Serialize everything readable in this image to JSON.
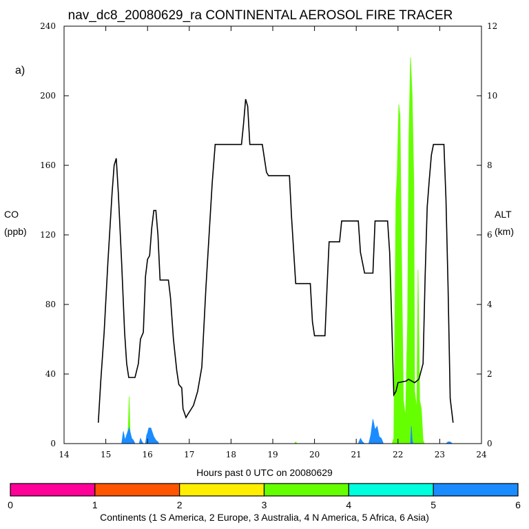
{
  "chart_data": {
    "type": "area",
    "title": "nav_dc8_20080629_ra CONTINENTAL AEROSOL FIRE TRACER",
    "panel_label": "a)",
    "xlabel": "Hours past 0 UTC on 20080629",
    "ylabel_left": [
      "CO",
      "(ppb)"
    ],
    "ylabel_right": [
      "ALT",
      "(km)"
    ],
    "xlim": [
      14,
      24
    ],
    "ylim": [
      0,
      240
    ],
    "y2lim": [
      0,
      12
    ],
    "xticks": [
      "14",
      "15",
      "16",
      "17",
      "18",
      "19",
      "20",
      "21",
      "22",
      "23",
      "24"
    ],
    "yticks": [
      "0",
      "40",
      "80",
      "120",
      "160",
      "200",
      "240"
    ],
    "y2ticks": [
      "0",
      "2",
      "4",
      "6",
      "8",
      "10",
      "12"
    ],
    "series": [
      {
        "name": "Altitude (km)",
        "axis": "right",
        "color": "#000000",
        "points": [
          [
            14.82,
            0.6
          ],
          [
            14.88,
            1.8
          ],
          [
            14.96,
            3.2
          ],
          [
            15.05,
            5.2
          ],
          [
            15.15,
            7.2
          ],
          [
            15.2,
            8.0
          ],
          [
            15.25,
            8.2
          ],
          [
            15.3,
            7.2
          ],
          [
            15.38,
            5.2
          ],
          [
            15.45,
            3.2
          ],
          [
            15.5,
            2.3
          ],
          [
            15.55,
            1.9
          ],
          [
            15.7,
            1.9
          ],
          [
            15.78,
            2.3
          ],
          [
            15.83,
            3.0
          ],
          [
            15.9,
            3.2
          ],
          [
            15.95,
            4.8
          ],
          [
            16.0,
            5.3
          ],
          [
            16.05,
            5.4
          ],
          [
            16.1,
            6.2
          ],
          [
            16.15,
            6.7
          ],
          [
            16.2,
            6.7
          ],
          [
            16.25,
            6.0
          ],
          [
            16.3,
            4.7
          ],
          [
            16.5,
            4.7
          ],
          [
            16.55,
            4.2
          ],
          [
            16.62,
            3.0
          ],
          [
            16.7,
            2.1
          ],
          [
            16.75,
            1.7
          ],
          [
            16.82,
            1.6
          ],
          [
            16.85,
            1.0
          ],
          [
            16.92,
            0.75
          ],
          [
            16.97,
            0.85
          ],
          [
            17.05,
            1.0
          ],
          [
            17.1,
            1.1
          ],
          [
            17.2,
            1.5
          ],
          [
            17.3,
            2.2
          ],
          [
            17.4,
            4.5
          ],
          [
            17.55,
            7.5
          ],
          [
            17.62,
            8.6
          ],
          [
            17.75,
            8.6
          ],
          [
            18.0,
            8.6
          ],
          [
            18.25,
            8.6
          ],
          [
            18.3,
            9.2
          ],
          [
            18.35,
            9.9
          ],
          [
            18.4,
            9.7
          ],
          [
            18.45,
            8.6
          ],
          [
            18.7,
            8.6
          ],
          [
            18.75,
            8.6
          ],
          [
            18.85,
            7.8
          ],
          [
            18.9,
            7.7
          ],
          [
            19.0,
            7.7
          ],
          [
            19.4,
            7.7
          ],
          [
            19.45,
            6.5
          ],
          [
            19.55,
            4.6
          ],
          [
            19.9,
            4.6
          ],
          [
            19.95,
            3.5
          ],
          [
            20.0,
            3.1
          ],
          [
            20.25,
            3.1
          ],
          [
            20.3,
            4.5
          ],
          [
            20.35,
            5.8
          ],
          [
            20.6,
            5.8
          ],
          [
            20.65,
            6.4
          ],
          [
            21.05,
            6.4
          ],
          [
            21.1,
            5.5
          ],
          [
            21.2,
            4.9
          ],
          [
            21.4,
            4.9
          ],
          [
            21.45,
            6.4
          ],
          [
            21.75,
            6.4
          ],
          [
            21.8,
            5.5
          ],
          [
            21.85,
            3.5
          ],
          [
            21.9,
            1.4
          ],
          [
            21.95,
            1.5
          ],
          [
            22.0,
            1.75
          ],
          [
            22.2,
            1.8
          ],
          [
            22.25,
            1.85
          ],
          [
            22.4,
            1.75
          ],
          [
            22.5,
            1.85
          ],
          [
            22.6,
            2.3
          ],
          [
            22.65,
            4.8
          ],
          [
            22.7,
            6.8
          ],
          [
            22.75,
            7.6
          ],
          [
            22.8,
            8.3
          ],
          [
            22.85,
            8.6
          ],
          [
            23.1,
            8.6
          ],
          [
            23.15,
            7.0
          ],
          [
            23.2,
            4.5
          ],
          [
            23.25,
            1.3
          ],
          [
            23.32,
            0.6
          ]
        ]
      },
      {
        "name": "N America (4)",
        "axis": "left",
        "color": "#66ff00",
        "points": [
          [
            15.5,
            0
          ],
          [
            15.54,
            10
          ],
          [
            15.56,
            27
          ],
          [
            15.58,
            8
          ],
          [
            15.6,
            0
          ],
          [
            19.52,
            0
          ],
          [
            19.55,
            1
          ],
          [
            19.58,
            0
          ],
          [
            21.86,
            0
          ],
          [
            21.9,
            3
          ],
          [
            21.95,
            140
          ],
          [
            21.98,
            155
          ],
          [
            22.02,
            195
          ],
          [
            22.05,
            188
          ],
          [
            22.08,
            120
          ],
          [
            22.1,
            80
          ],
          [
            22.13,
            25
          ],
          [
            22.18,
            15
          ],
          [
            22.23,
            70
          ],
          [
            22.26,
            175
          ],
          [
            22.3,
            222
          ],
          [
            22.34,
            200
          ],
          [
            22.38,
            150
          ],
          [
            22.4,
            30
          ],
          [
            22.45,
            20
          ],
          [
            22.48,
            100
          ],
          [
            22.52,
            25
          ],
          [
            22.56,
            20
          ],
          [
            22.6,
            2
          ],
          [
            22.63,
            0
          ]
        ]
      },
      {
        "name": "Asia (6)",
        "axis": "left",
        "color": "#1a8cff",
        "points": [
          [
            15.38,
            0
          ],
          [
            15.42,
            7
          ],
          [
            15.46,
            2
          ],
          [
            15.5,
            5
          ],
          [
            15.56,
            9
          ],
          [
            15.62,
            3
          ],
          [
            15.66,
            2
          ],
          [
            15.7,
            0
          ],
          [
            15.8,
            0
          ],
          [
            15.83,
            3
          ],
          [
            15.87,
            1
          ],
          [
            15.9,
            0
          ],
          [
            15.95,
            0
          ],
          [
            15.98,
            5
          ],
          [
            16.0,
            6
          ],
          [
            16.03,
            9
          ],
          [
            16.08,
            9
          ],
          [
            16.12,
            6
          ],
          [
            16.15,
            4
          ],
          [
            16.2,
            2
          ],
          [
            16.25,
            1
          ],
          [
            16.27,
            0
          ],
          [
            21.05,
            0
          ],
          [
            21.1,
            3
          ],
          [
            21.15,
            1
          ],
          [
            21.2,
            0
          ],
          [
            21.3,
            0
          ],
          [
            21.35,
            5
          ],
          [
            21.4,
            14
          ],
          [
            21.45,
            8
          ],
          [
            21.5,
            10
          ],
          [
            21.55,
            4
          ],
          [
            21.6,
            3
          ],
          [
            21.65,
            0
          ],
          [
            22.3,
            0
          ],
          [
            22.32,
            10
          ],
          [
            22.34,
            2
          ],
          [
            22.36,
            0
          ],
          [
            23.15,
            0
          ],
          [
            23.2,
            1
          ],
          [
            23.25,
            1
          ],
          [
            23.3,
            0
          ]
        ]
      }
    ],
    "continent_bar": {
      "label": "Continents (1 S America, 2 Europe, 3 Australia, 4 N America, 5 Africa, 6 Asia)",
      "ticks": [
        "0",
        "1",
        "2",
        "3",
        "4",
        "5",
        "6"
      ],
      "colors": [
        "#ff0099",
        "#ff5500",
        "#ffee00",
        "#66ff00",
        "#00ffdd",
        "#1a8cff"
      ]
    }
  }
}
